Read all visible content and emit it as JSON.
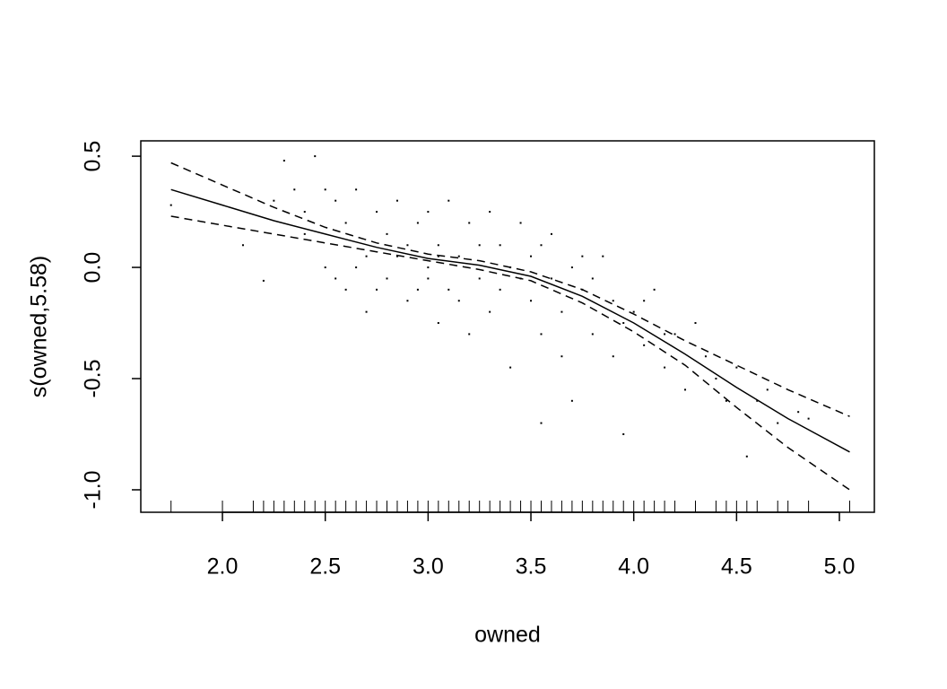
{
  "chart_data": {
    "type": "line",
    "xlabel": "owned",
    "ylabel": "s(owned,5.58)",
    "xlim": [
      1.603,
      5.17
    ],
    "ylim": [
      -1.101,
      0.569
    ],
    "xticks": [
      {
        "value": 2,
        "label": "2.0"
      },
      {
        "value": 2.5,
        "label": "2.5"
      },
      {
        "value": 3,
        "label": "3.0"
      },
      {
        "value": 3.5,
        "label": "3.5"
      },
      {
        "value": 4,
        "label": "4.0"
      },
      {
        "value": 4.5,
        "label": "4.5"
      },
      {
        "value": 5,
        "label": "5.0"
      }
    ],
    "yticks": [
      {
        "value": -1,
        "label": "-1.0"
      },
      -0.5,
      {
        "value": 0,
        "label": "0.0"
      },
      0.5
    ],
    "x": [
      1.75,
      2.0,
      2.25,
      2.5,
      2.75,
      3.0,
      3.25,
      3.5,
      3.75,
      4.0,
      4.25,
      4.5,
      4.75,
      5.05
    ],
    "series": [
      {
        "color": "#000000",
        "style": "solid",
        "values": [
          0.35,
          0.28,
          0.21,
          0.15,
          0.09,
          0.04,
          0.01,
          -0.04,
          -0.13,
          -0.25,
          -0.39,
          -0.54,
          -0.68,
          -0.83
        ]
      },
      {
        "color": "#000000",
        "style": "dashed",
        "values": [
          0.47,
          0.37,
          0.27,
          0.18,
          0.11,
          0.06,
          0.03,
          -0.02,
          -0.1,
          -0.21,
          -0.33,
          -0.44,
          -0.55,
          -0.67
        ]
      },
      {
        "color": "#000000",
        "style": "dashed",
        "values": [
          0.23,
          0.19,
          0.15,
          0.11,
          0.07,
          0.03,
          -0.01,
          -0.06,
          -0.16,
          -0.29,
          -0.44,
          -0.63,
          -0.81,
          -1.0
        ]
      }
    ],
    "points": {
      "color": "#000000",
      "x": [
        2.1,
        2.2,
        2.3,
        2.35,
        2.4,
        2.45,
        2.5,
        2.55,
        2.6,
        2.6,
        2.65,
        2.7,
        2.7,
        2.75,
        2.8,
        2.8,
        2.85,
        2.9,
        2.9,
        2.95,
        3.0,
        3.0,
        3.05,
        3.05,
        3.1,
        3.1,
        3.15,
        3.2,
        3.2,
        3.25,
        3.3,
        3.3,
        3.35,
        3.4,
        3.4,
        3.45,
        3.5,
        3.5,
        3.55,
        3.55,
        3.6,
        3.6,
        3.65,
        3.7,
        3.7,
        3.75,
        3.8,
        3.85,
        3.9,
        3.9,
        3.95,
        4.0,
        4.05,
        4.1,
        4.15,
        4.2,
        4.25,
        4.3,
        4.35,
        4.4,
        4.45,
        4.5,
        4.55,
        4.6,
        4.65,
        4.7,
        4.8,
        4.85,
        1.75,
        2.25,
        2.4,
        2.5,
        2.55,
        2.65,
        2.75,
        2.85,
        2.95,
        3.0,
        3.05,
        3.15,
        3.25,
        3.35,
        3.45,
        3.55,
        3.65,
        3.75,
        3.8,
        3.95,
        4.05,
        4.15
      ],
      "y": [
        0.1,
        -0.06,
        0.48,
        0.35,
        0.25,
        0.5,
        0.0,
        0.3,
        0.2,
        -0.1,
        0.35,
        0.05,
        -0.2,
        0.25,
        0.15,
        -0.05,
        0.3,
        -0.15,
        0.1,
        0.2,
        -0.05,
        0.25,
        -0.25,
        0.1,
        0.3,
        -0.1,
        0.05,
        0.2,
        -0.3,
        -0.05,
        0.25,
        -0.2,
        0.1,
        -0.45,
        0.0,
        0.2,
        -0.15,
        0.05,
        -0.7,
        -0.3,
        0.15,
        -0.05,
        -0.2,
        0.0,
        -0.6,
        -0.1,
        -0.3,
        0.05,
        -0.15,
        -0.4,
        -0.75,
        -0.2,
        -0.35,
        -0.1,
        -0.45,
        -0.3,
        -0.55,
        -0.25,
        -0.4,
        -0.5,
        -0.6,
        -0.45,
        -0.85,
        -0.6,
        -0.55,
        -0.7,
        -0.65,
        -0.68,
        0.28,
        0.3,
        0.15,
        0.35,
        -0.05,
        0.0,
        -0.1,
        0.05,
        -0.1,
        0.0,
        0.05,
        -0.15,
        0.1,
        -0.1,
        -0.05,
        0.1,
        -0.4,
        0.05,
        -0.05,
        -0.25,
        -0.15,
        -0.3
      ]
    },
    "rug": [
      1.75,
      2.0,
      2.15,
      2.2,
      2.25,
      2.3,
      2.35,
      2.4,
      2.45,
      2.5,
      2.55,
      2.6,
      2.65,
      2.7,
      2.75,
      2.8,
      2.85,
      2.9,
      2.95,
      3.0,
      3.05,
      3.1,
      3.15,
      3.2,
      3.25,
      3.3,
      3.35,
      3.4,
      3.45,
      3.5,
      3.55,
      3.6,
      3.65,
      3.7,
      3.75,
      3.8,
      3.85,
      3.9,
      3.95,
      4.0,
      4.05,
      4.1,
      4.15,
      4.2,
      4.3,
      4.4,
      4.45,
      4.5,
      4.55,
      4.6,
      4.7,
      4.75,
      4.85,
      5.05
    ]
  }
}
